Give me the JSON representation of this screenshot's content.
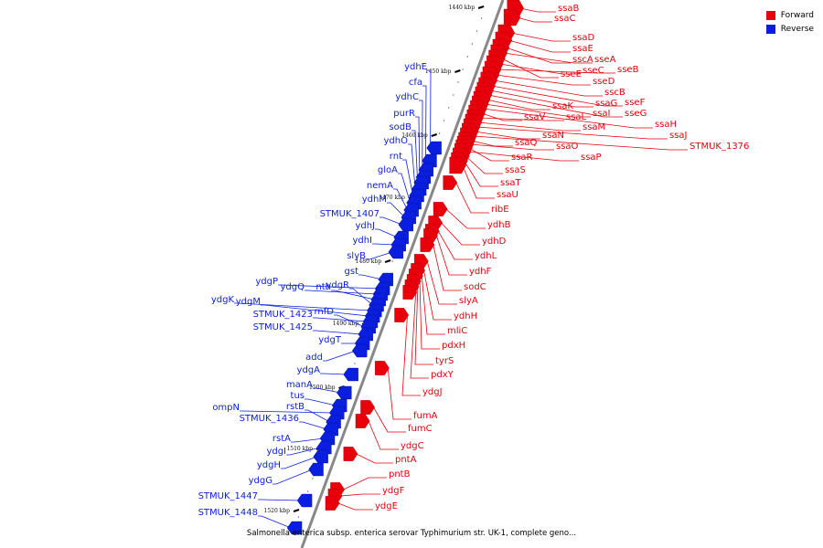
{
  "colors": {
    "forward": "#e8000b",
    "reverse": "#0a1ee0",
    "axis": "#888888",
    "tick": "#000000"
  },
  "legend": {
    "forward_label": "Forward",
    "reverse_label": "Reverse"
  },
  "caption": "Salmonella enterica subsp. enterica serovar Typhimurium str. UK-1, complete geno...",
  "axis_ticks": [
    "1440 kbp",
    "1450 kbp",
    "1460 kbp",
    "1470 kbp",
    "1480 kbp",
    "1490 kbp",
    "1500 kbp",
    "1510 kbp",
    "1520 kbp"
  ],
  "forward_genes": [
    "ssaB",
    "ssaC",
    "ssaD",
    "ssaE",
    "sscA",
    "sseA",
    "sseE",
    "sseC",
    "sseB",
    "sseD",
    "sscB",
    "sseF",
    "ssaG",
    "sseG",
    "ssaK",
    "ssaI",
    "ssaH",
    "ssaV",
    "ssaL",
    "ssaM",
    "ssaJ",
    "ssaN",
    "STMUK_1376",
    "ssaQ",
    "ssaO",
    "ssaR",
    "ssaP",
    "ssaS",
    "ssaT",
    "ssaU",
    "ribE",
    "ydhB",
    "ydhD",
    "ydhL",
    "ydhF",
    "sodC",
    "slyA",
    "ydhH",
    "mliC",
    "pdxH",
    "tyrS",
    "pdxY",
    "ydgJ",
    "fumA",
    "fumC",
    "ydgC",
    "pntA",
    "pntB",
    "ydgF",
    "ydgE"
  ],
  "reverse_genes": [
    "ydhE",
    "cfa",
    "ydhC",
    "purR",
    "sodB",
    "ydhO",
    "rnt",
    "gloA",
    "nemA",
    "ydhM",
    "STMUK_1407",
    "ydhJ",
    "ydhI",
    "slyB",
    "gst",
    "ydgP",
    "ydgQ",
    "nth",
    "ydgR",
    "ydgK",
    "ydgM",
    "STMUK_1423",
    "rnfD",
    "STMUK_1425",
    "ydgT",
    "add",
    "ydgA",
    "manA",
    "tus",
    "ompN",
    "rstB",
    "STMUK_1436",
    "rstA",
    "ydgI",
    "ydgH",
    "ydgG",
    "STMUK_1447",
    "STMUK_1448"
  ]
}
